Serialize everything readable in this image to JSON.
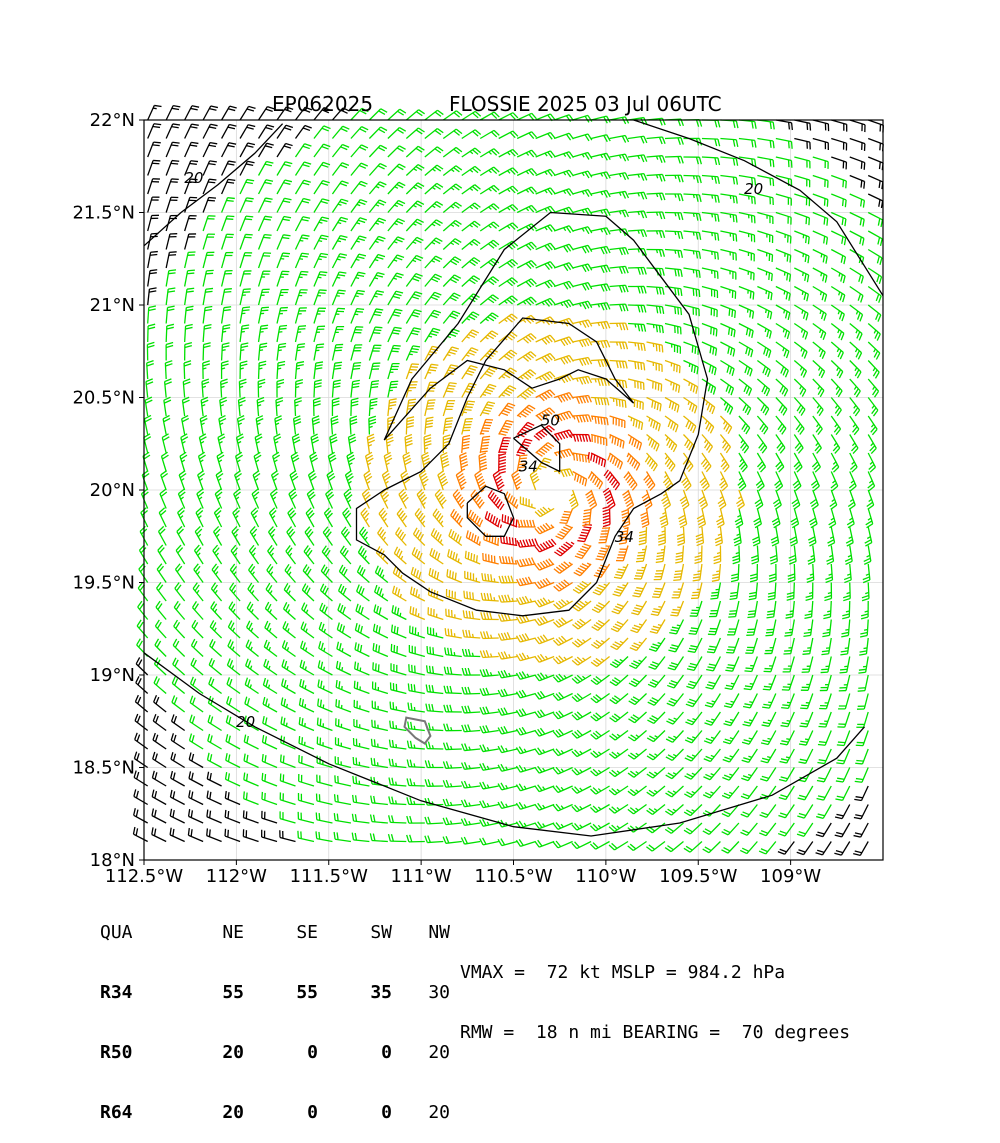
{
  "chart_data": {
    "type": "wind-barb-map",
    "storm_id": "EP062025",
    "title": "FLOSSIE 2025 03 Jul 06UTC",
    "xlim": [
      -112.5,
      -108.5
    ],
    "ylim": [
      18.0,
      22.0
    ],
    "x_ticks": [
      {
        "value": -112.5,
        "label": "112.5°W"
      },
      {
        "value": -112.0,
        "label": "112°W"
      },
      {
        "value": -111.5,
        "label": "111.5°W"
      },
      {
        "value": -111.0,
        "label": "111°W"
      },
      {
        "value": -110.5,
        "label": "110.5°W"
      },
      {
        "value": -110.0,
        "label": "110°W"
      },
      {
        "value": -109.5,
        "label": "109.5°W"
      },
      {
        "value": -109.0,
        "label": "109°W"
      }
    ],
    "y_ticks": [
      {
        "value": 22.0,
        "label": "22°N"
      },
      {
        "value": 21.5,
        "label": "21.5°N"
      },
      {
        "value": 21.0,
        "label": "21°N"
      },
      {
        "value": 20.5,
        "label": "20.5°N"
      },
      {
        "value": 20.0,
        "label": "20°N"
      },
      {
        "value": 19.5,
        "label": "19.5°N"
      },
      {
        "value": 19.0,
        "label": "19°N"
      },
      {
        "value": 18.5,
        "label": "18.5°N"
      },
      {
        "value": 18.0,
        "label": "18°N"
      }
    ],
    "grid": true,
    "center": {
      "lon": -110.3,
      "lat": 20.0
    },
    "wind_colors": {
      "below_20": "#000000",
      "20_to_34": "#00e000",
      "34_to_50": "#e6b800",
      "50_to_64": "#ff7f00",
      "above_64": "#e00000"
    },
    "contours": [
      {
        "label": "20",
        "color": "#000000",
        "points": [
          [
            -112.5,
            21.32
          ],
          [
            -112.3,
            21.5
          ],
          [
            -112.1,
            21.65
          ],
          [
            -111.9,
            21.82
          ],
          [
            -111.75,
            21.98
          ]
        ]
      },
      {
        "label": "20",
        "color": "#000000",
        "points": [
          [
            -109.85,
            22.0
          ],
          [
            -109.55,
            21.9
          ],
          [
            -109.25,
            21.78
          ],
          [
            -108.95,
            21.62
          ],
          [
            -108.75,
            21.45
          ],
          [
            -108.5,
            21.05
          ]
        ]
      },
      {
        "label": "20",
        "color": "#000000",
        "points": [
          [
            -112.5,
            19.12
          ],
          [
            -112.2,
            18.9
          ],
          [
            -111.9,
            18.72
          ],
          [
            -111.5,
            18.52
          ],
          [
            -111.0,
            18.32
          ],
          [
            -110.5,
            18.18
          ],
          [
            -110.08,
            18.13
          ],
          [
            -109.6,
            18.2
          ],
          [
            -109.1,
            18.35
          ],
          [
            -108.75,
            18.55
          ],
          [
            -108.6,
            18.72
          ]
        ]
      },
      {
        "label": "34",
        "color": "#000000",
        "points": [
          [
            -111.2,
            20.27
          ],
          [
            -111.05,
            20.6
          ],
          [
            -110.8,
            20.9
          ],
          [
            -110.55,
            21.3
          ],
          [
            -110.3,
            21.5
          ],
          [
            -110.0,
            21.48
          ],
          [
            -109.85,
            21.35
          ],
          [
            -109.7,
            21.15
          ],
          [
            -109.55,
            20.95
          ],
          [
            -109.45,
            20.6
          ],
          [
            -109.5,
            20.3
          ],
          [
            -109.6,
            20.05
          ],
          [
            -109.7,
            19.98
          ],
          [
            -109.85,
            19.9
          ],
          [
            -109.95,
            19.75
          ],
          [
            -110.05,
            19.5
          ],
          [
            -110.2,
            19.35
          ],
          [
            -110.45,
            19.32
          ],
          [
            -110.7,
            19.35
          ],
          [
            -110.95,
            19.45
          ],
          [
            -111.1,
            19.55
          ],
          [
            -111.2,
            19.65
          ],
          [
            -111.35,
            19.73
          ],
          [
            -111.35,
            19.9
          ],
          [
            -111.2,
            20.0
          ],
          [
            -111.0,
            20.1
          ],
          [
            -110.85,
            20.25
          ],
          [
            -110.75,
            20.5
          ],
          [
            -110.65,
            20.7
          ],
          [
            -110.45,
            20.93
          ],
          [
            -110.2,
            20.9
          ],
          [
            -110.05,
            20.8
          ],
          [
            -109.95,
            20.6
          ],
          [
            -109.85,
            20.47
          ],
          [
            -110.0,
            20.6
          ],
          [
            -110.15,
            20.65
          ],
          [
            -110.25,
            20.6
          ],
          [
            -110.4,
            20.55
          ],
          [
            -110.55,
            20.65
          ],
          [
            -110.75,
            20.7
          ],
          [
            -110.95,
            20.55
          ],
          [
            -111.2,
            20.27
          ]
        ]
      },
      {
        "label": "34",
        "color": "#000000",
        "points": [
          [
            -110.75,
            19.93
          ],
          [
            -110.65,
            20.02
          ],
          [
            -110.55,
            19.98
          ],
          [
            -110.5,
            19.85
          ],
          [
            -110.55,
            19.75
          ],
          [
            -110.65,
            19.75
          ],
          [
            -110.75,
            19.85
          ],
          [
            -110.75,
            19.93
          ]
        ]
      },
      {
        "label": "50",
        "color": "#000000",
        "points": [
          [
            -110.5,
            20.28
          ],
          [
            -110.35,
            20.35
          ],
          [
            -110.25,
            20.25
          ],
          [
            -110.25,
            20.1
          ],
          [
            -110.35,
            20.15
          ],
          [
            -110.5,
            20.28
          ]
        ]
      }
    ],
    "contour_labels": [
      {
        "text": "20",
        "lon": -112.23,
        "lat": 21.66
      },
      {
        "text": "20",
        "lon": -109.2,
        "lat": 21.6
      },
      {
        "text": "20",
        "lon": -111.95,
        "lat": 18.72
      },
      {
        "text": "34",
        "lon": -110.42,
        "lat": 20.1
      },
      {
        "text": "34",
        "lon": -109.9,
        "lat": 19.72
      },
      {
        "text": "50",
        "lon": -110.3,
        "lat": 20.35
      }
    ],
    "radii_table": {
      "columns": [
        "QUA",
        "NE",
        "SE",
        "SW",
        "NW"
      ],
      "rows": [
        {
          "label": "R34",
          "values": [
            "55",
            "55",
            "35",
            "30"
          ]
        },
        {
          "label": "R50",
          "values": [
            "20",
            "0",
            "0",
            "20"
          ]
        },
        {
          "label": "R64",
          "values": [
            "20",
            "0",
            "0",
            "20"
          ]
        }
      ]
    },
    "summary": {
      "line1": "VMAX =  72 kt MSLP = 984.2 hPa",
      "line2": "RMW =  18 n mi BEARING =  70 degrees"
    }
  }
}
